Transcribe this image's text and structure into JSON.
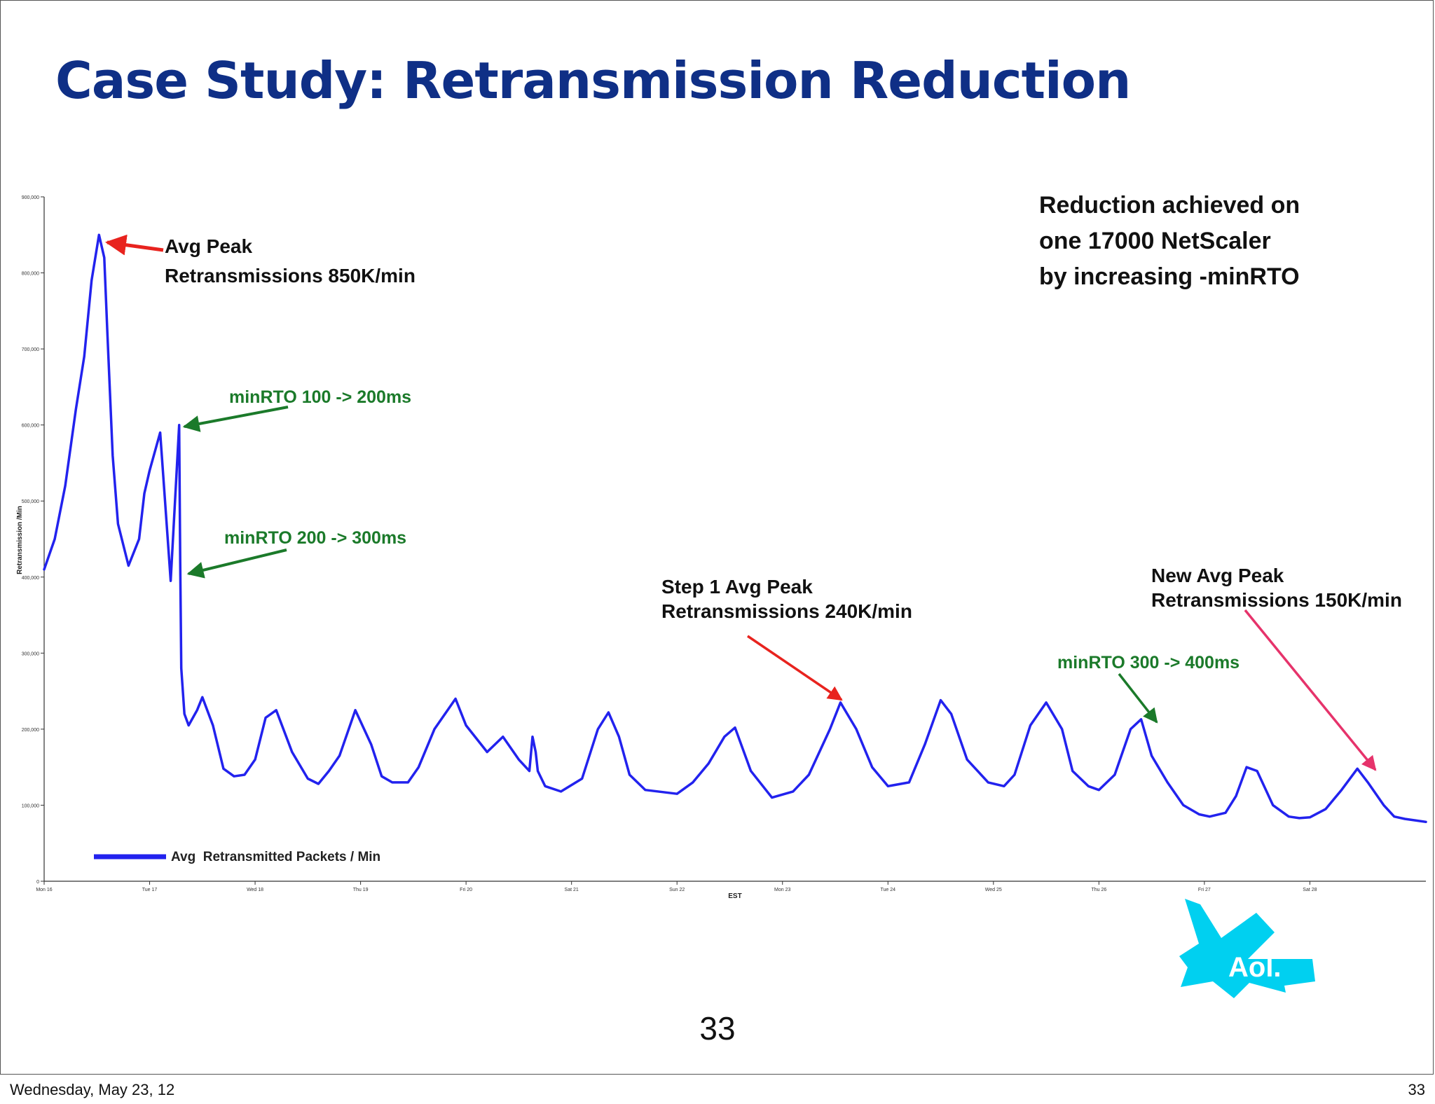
{
  "slide": {
    "title": "Case Study: Retransmission Reduction",
    "slide_number": "33",
    "footer_date": "Wednesday, May 23, 12",
    "footer_page": "33",
    "logo_text": "Aol."
  },
  "colors": {
    "title": "#0f2f86",
    "series": "#2222ee",
    "red_arrow": "#e8231e",
    "green_arrow": "#1b7a2a",
    "pink_arrow": "#e6336b",
    "logo": "#00d0f0"
  },
  "chart_data": {
    "type": "line",
    "title": "",
    "xlabel": "EST",
    "ylabel": "Retransmission /Min",
    "ylim": [
      0,
      900000
    ],
    "xlim": [
      0,
      13.1
    ],
    "grid": false,
    "legend_position": "bottom-left",
    "y_ticks": [
      0,
      100000,
      200000,
      300000,
      400000,
      500000,
      600000,
      700000,
      800000,
      900000
    ],
    "y_tick_labels": [
      "0",
      "100,000",
      "200,000",
      "300,000",
      "400,000",
      "500,000",
      "600,000",
      "700,000",
      "800,000",
      "900,000"
    ],
    "x_ticks": [
      0,
      1,
      2,
      3,
      4,
      5,
      6,
      7,
      8,
      9,
      10,
      11,
      12
    ],
    "x_tick_labels": [
      "Mon 16",
      "Tue 17",
      "Wed 18",
      "Thu 19",
      "Fri 20",
      "Sat 21",
      "Sun 22",
      "Mon 23",
      "Tue 24",
      "Wed 25",
      "Thu 26",
      "Fri 27",
      "Sat 28"
    ],
    "series": [
      {
        "name": "Avg  Retransmitted Packets / Min",
        "x": [
          0,
          0.1,
          0.2,
          0.3,
          0.38,
          0.45,
          0.52,
          0.57,
          0.6,
          0.65,
          0.7,
          0.8,
          0.9,
          0.95,
          1.0,
          1.1,
          1.2,
          1.28,
          1.29,
          1.3,
          1.33,
          1.37,
          1.45,
          1.5,
          1.6,
          1.7,
          1.8,
          1.9,
          2.0,
          2.1,
          2.2,
          2.35,
          2.5,
          2.6,
          2.7,
          2.8,
          2.95,
          3.1,
          3.2,
          3.3,
          3.45,
          3.55,
          3.7,
          3.9,
          4.0,
          4.2,
          4.35,
          4.5,
          4.6,
          4.63,
          4.66,
          4.68,
          4.75,
          4.9,
          5.1,
          5.25,
          5.35,
          5.45,
          5.55,
          5.7,
          6.0,
          6.15,
          6.3,
          6.45,
          6.55,
          6.7,
          6.9,
          7.1,
          7.25,
          7.45,
          7.55,
          7.7,
          7.85,
          8.0,
          8.2,
          8.35,
          8.5,
          8.6,
          8.75,
          8.95,
          9.1,
          9.2,
          9.35,
          9.5,
          9.65,
          9.75,
          9.9,
          10.0,
          10.15,
          10.3,
          10.4,
          10.5,
          10.65,
          10.8,
          10.95,
          11.05,
          11.2,
          11.3,
          11.4,
          11.5,
          11.65,
          11.8,
          11.9,
          12.0,
          12.15,
          12.3,
          12.45,
          12.55,
          12.7,
          12.8,
          12.9,
          13.1
        ],
        "y": [
          410000,
          450000,
          520000,
          620000,
          690000,
          790000,
          850000,
          820000,
          720000,
          560000,
          470000,
          415000,
          450000,
          510000,
          540000,
          590000,
          395000,
          600000,
          420000,
          280000,
          220000,
          205000,
          225000,
          242000,
          205000,
          148000,
          138000,
          140000,
          160000,
          215000,
          225000,
          170000,
          135000,
          128000,
          145000,
          165000,
          225000,
          180000,
          138000,
          130000,
          130000,
          150000,
          200000,
          240000,
          205000,
          170000,
          190000,
          160000,
          145000,
          190000,
          170000,
          145000,
          125000,
          118000,
          135000,
          200000,
          222000,
          190000,
          140000,
          120000,
          115000,
          130000,
          155000,
          190000,
          202000,
          145000,
          110000,
          118000,
          140000,
          200000,
          235000,
          200000,
          150000,
          125000,
          130000,
          180000,
          238000,
          220000,
          160000,
          130000,
          125000,
          140000,
          205000,
          235000,
          200000,
          145000,
          125000,
          120000,
          140000,
          200000,
          213000,
          165000,
          130000,
          100000,
          88000,
          85000,
          90000,
          112000,
          150000,
          145000,
          100000,
          85000,
          83000,
          84000,
          95000,
          120000,
          148000,
          130000,
          100000,
          85000,
          82000,
          78000
        ]
      }
    ],
    "annotations": [
      {
        "text": [
          "Avg Peak",
          "Retransmissions 850K/min"
        ],
        "color": "red"
      },
      {
        "text": [
          "minRTO 100 -> 200ms"
        ],
        "color": "green"
      },
      {
        "text": [
          "minRTO 200 -> 300ms"
        ],
        "color": "green"
      },
      {
        "text": [
          "Step 1 Avg Peak",
          "Retransmissions 240K/min"
        ],
        "color": "red"
      },
      {
        "text": [
          "New Avg Peak",
          "Retransmissions 150K/min"
        ],
        "color": "pink"
      },
      {
        "text": [
          "minRTO 300 -> 400ms"
        ],
        "color": "green"
      },
      {
        "text": [
          "Reduction achieved on",
          "one 17000 NetScaler",
          "by increasing -minRTO"
        ],
        "color": "black"
      }
    ]
  }
}
